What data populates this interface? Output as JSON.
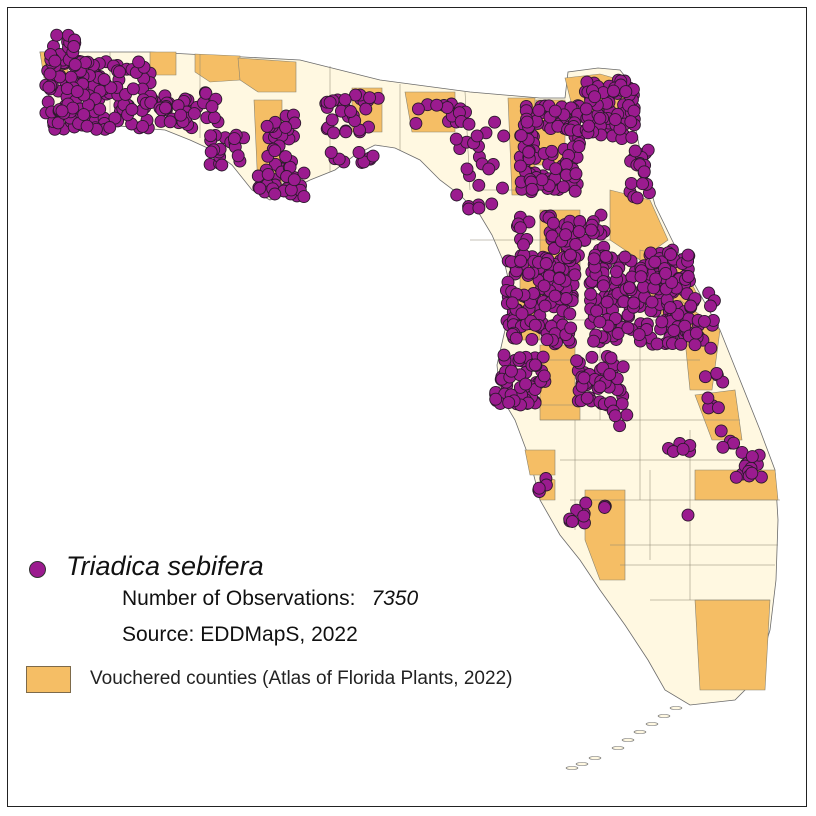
{
  "legend": {
    "species_name": "Triadica sebifera",
    "observations_label": "Number of Observations:",
    "observations_count": "7350",
    "source": "Source: EDDMapS, 2022",
    "vouchered_label": "Vouchered counties (Atlas of Florida Plants, 2022)"
  },
  "colors": {
    "land": "#fff8e1",
    "vouchered_county": "#f5be65",
    "observation_point": "#9b1b8f",
    "county_border": "#8a8470"
  },
  "icons": {
    "observation_marker": "filled-circle",
    "vouchered_swatch": "filled-rectangle"
  }
}
